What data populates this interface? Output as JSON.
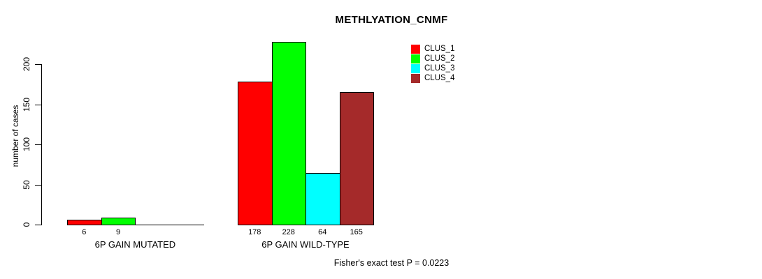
{
  "title": "METHLYATION_CNMF",
  "footer": "Fisher's exact test P = 0.0223",
  "y_axis": {
    "label": "number of cases",
    "ticks": [
      0,
      50,
      100,
      150,
      200
    ]
  },
  "legend": {
    "items": [
      {
        "label": "CLUS_1",
        "color": "#FF0000"
      },
      {
        "label": "CLUS_2",
        "color": "#00FF00"
      },
      {
        "label": "CLUS_3",
        "color": "#00FFFF"
      },
      {
        "label": "CLUS_4",
        "color": "#A52A2A"
      }
    ]
  },
  "colors": {
    "axis": "#000000",
    "bar_border": "#000000",
    "background": "#FFFFFF",
    "text": "#000000"
  },
  "chart_data": {
    "type": "bar",
    "title": "METHLYATION_CNMF",
    "xlabel": "",
    "ylabel": "number of cases",
    "ylim": [
      0,
      230
    ],
    "yticks": [
      0,
      50,
      100,
      150,
      200
    ],
    "grid": false,
    "legend_position": "top-right",
    "categories": [
      "6P GAIN MUTATED",
      "6P GAIN WILD-TYPE"
    ],
    "series": [
      {
        "name": "CLUS_1",
        "color": "#FF0000",
        "values": [
          6,
          178
        ]
      },
      {
        "name": "CLUS_2",
        "color": "#00FF00",
        "values": [
          9,
          228
        ]
      },
      {
        "name": "CLUS_3",
        "color": "#00FFFF",
        "values": [
          0,
          64
        ]
      },
      {
        "name": "CLUS_4",
        "color": "#A52A2A",
        "values": [
          0,
          165
        ]
      }
    ],
    "bar_value_labels": [
      [
        "6",
        "178"
      ],
      [
        "9",
        "228"
      ],
      [
        "",
        "64"
      ],
      [
        "",
        "165"
      ]
    ],
    "annotation": "Fisher's exact test P = 0.0223"
  }
}
